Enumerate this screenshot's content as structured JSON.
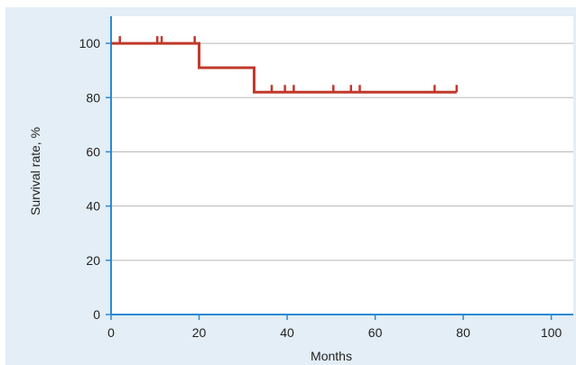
{
  "chart_data": {
    "type": "line",
    "title": "",
    "xlabel": "Months",
    "ylabel": "Survival rate, %",
    "xlim": [
      0,
      105
    ],
    "ylim": [
      0,
      110
    ],
    "x_ticks": [
      0,
      20,
      40,
      60,
      80,
      100
    ],
    "y_ticks": [
      0,
      20,
      40,
      60,
      80,
      100
    ],
    "grid": "horizontal",
    "series": [
      {
        "color": "#c0392b",
        "step_points": [
          {
            "x": 0,
            "y": 100
          },
          {
            "x": 20,
            "y": 100
          },
          {
            "x": 20,
            "y": 91
          },
          {
            "x": 32.5,
            "y": 91
          },
          {
            "x": 32.5,
            "y": 82
          },
          {
            "x": 78.5,
            "y": 82
          }
        ],
        "censored": [
          {
            "x": 2,
            "y": 100
          },
          {
            "x": 10.5,
            "y": 100
          },
          {
            "x": 11.5,
            "y": 100
          },
          {
            "x": 19,
            "y": 100
          },
          {
            "x": 36.5,
            "y": 82
          },
          {
            "x": 39.5,
            "y": 82
          },
          {
            "x": 41.5,
            "y": 82
          },
          {
            "x": 50.5,
            "y": 82
          },
          {
            "x": 54.5,
            "y": 82
          },
          {
            "x": 56.5,
            "y": 82
          },
          {
            "x": 73.5,
            "y": 82
          },
          {
            "x": 78.5,
            "y": 82
          }
        ]
      }
    ]
  },
  "colors": {
    "background_panel": "#e3eef6",
    "plot_area": "#ffffff",
    "axis": "#2a8ad4",
    "grid": "#b8b8b8",
    "curve": "#c0392b"
  }
}
